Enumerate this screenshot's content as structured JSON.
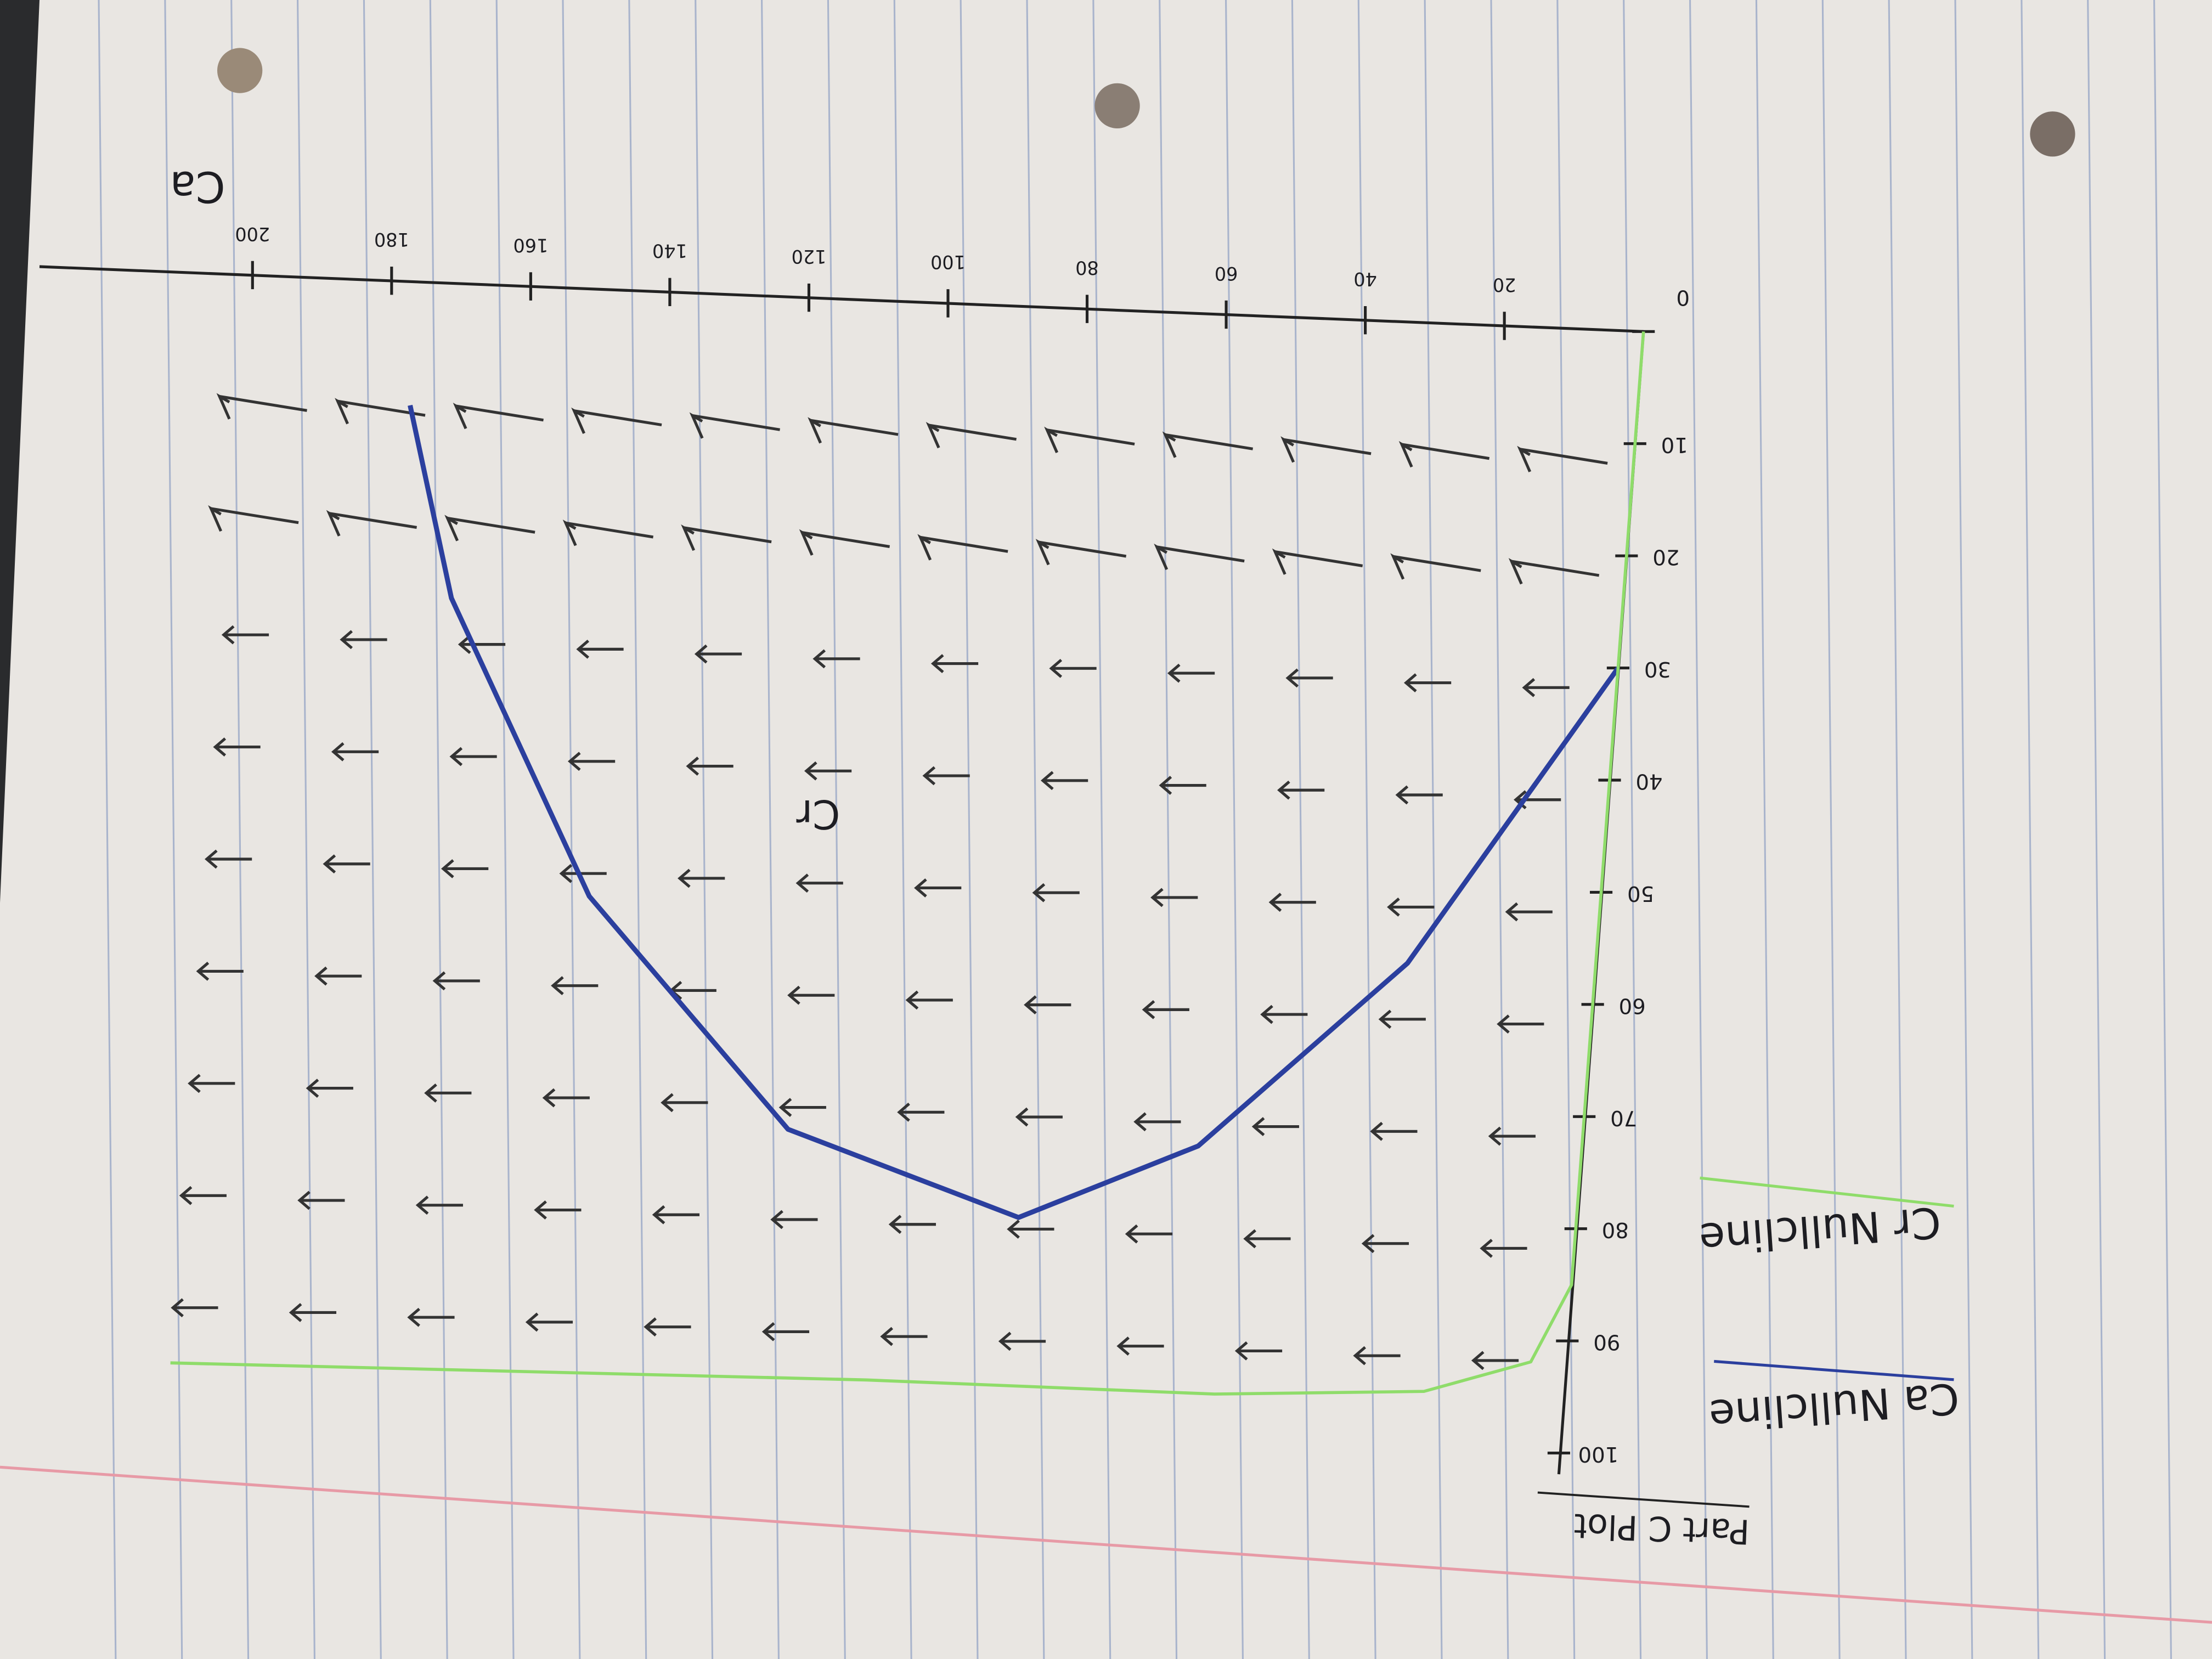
{
  "chart_data": {
    "type": "line",
    "title": "Part C Plot",
    "x_label": "Ca",
    "y_label": "Cr",
    "xlim": [
      0,
      200
    ],
    "ylim": [
      0,
      100
    ],
    "xticks": [
      20,
      40,
      60,
      80,
      100,
      120,
      140,
      160,
      180,
      200
    ],
    "yticks": [
      0,
      10,
      20,
      30,
      40,
      50,
      60,
      70,
      80,
      90,
      100
    ],
    "series": [
      {
        "name": "Ca Nullcline",
        "color": "#2b3f9e",
        "x": [
          0,
          27,
          55,
          80,
          114,
          145,
          168,
          176
        ],
        "values": [
          30,
          57,
          74,
          81,
          74,
          54,
          28,
          11
        ]
      },
      {
        "name": "Cr Nullcline",
        "color": "#8fdc6a",
        "x": [
          0,
          0,
          5,
          20,
          50,
          100,
          200
        ],
        "values": [
          0,
          85,
          92,
          95,
          96,
          96,
          97
        ]
      }
    ]
  }
}
